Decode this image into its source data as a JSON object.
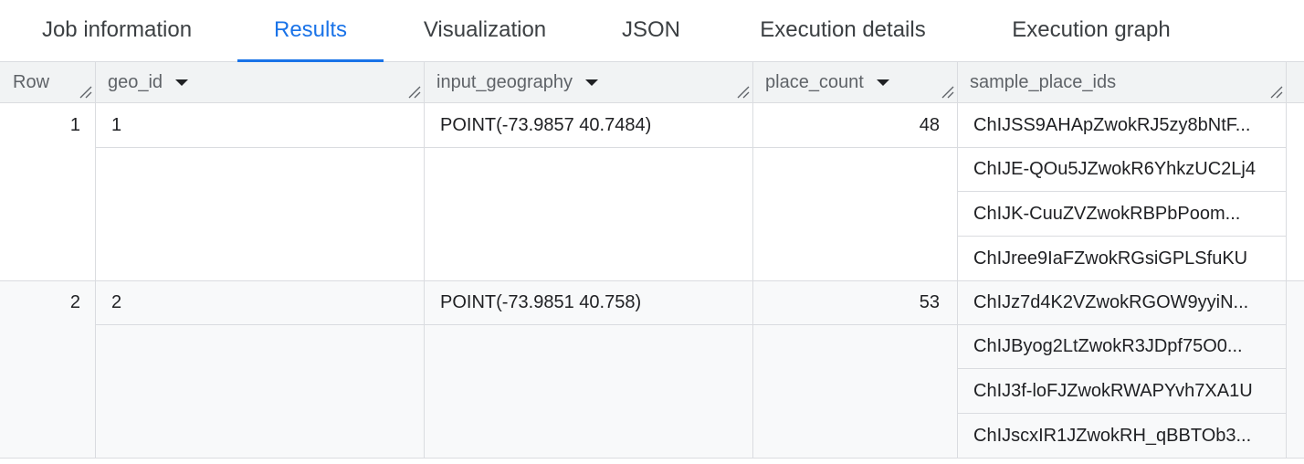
{
  "tabs": [
    "Job information",
    "Results",
    "Visualization",
    "JSON",
    "Execution details",
    "Execution graph"
  ],
  "active_tab": "Results",
  "columns": [
    "Row",
    "geo_id",
    "input_geography",
    "place_count",
    "sample_place_ids"
  ],
  "rows": [
    {
      "row": "1",
      "geo_id": "1",
      "input_geography": "POINT(-73.9857 40.7484)",
      "place_count": "48",
      "sample_place_ids": [
        "ChIJSS9AHApZwokRJ5zy8bNtF...",
        "ChIJE-QOu5JZwokR6YhkzUC2Lj4",
        "ChIJK-CuuZVZwokRBPbPoom...",
        "ChIJree9IaFZwokRGsiGPLSfuKU"
      ]
    },
    {
      "row": "2",
      "geo_id": "2",
      "input_geography": "POINT(-73.9851 40.758)",
      "place_count": "53",
      "sample_place_ids": [
        "ChIJz7d4K2VZwokRGOW9yyiN...",
        "ChIJByog2LtZwokR3JDpf75O0...",
        "ChIJ3f-loFJZwokRWAPYvh7XA1U",
        "ChIJscxIR1JZwokRH_qBBTOb3..."
      ]
    }
  ],
  "colors": {
    "accent": "#1a73e8",
    "header_bg": "#f1f3f4",
    "alt_row_bg": "#f8f9fa"
  }
}
